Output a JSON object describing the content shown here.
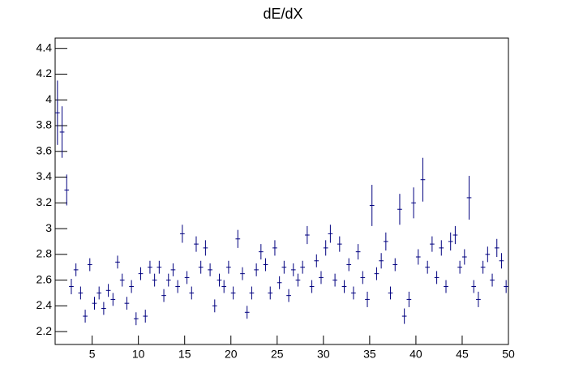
{
  "chart_data": {
    "type": "errorbar",
    "title": "dE/dX",
    "color": "#00007f",
    "xlim": [
      1,
      50
    ],
    "ylim": [
      2.1,
      4.48
    ],
    "xticks": [
      5,
      10,
      15,
      20,
      25,
      30,
      35,
      40,
      45,
      50
    ],
    "yticks": [
      2.2,
      2.4,
      2.6,
      2.8,
      3,
      3.2,
      3.4,
      3.6,
      3.8,
      4,
      4.2,
      4.4
    ],
    "xerr": 0.25,
    "x": [
      1.25,
      1.75,
      2.25,
      2.75,
      3.25,
      3.75,
      4.25,
      4.75,
      5.25,
      5.75,
      6.25,
      6.75,
      7.25,
      7.75,
      8.25,
      8.75,
      9.25,
      9.75,
      10.25,
      10.75,
      11.25,
      11.75,
      12.25,
      12.75,
      13.25,
      13.75,
      14.25,
      14.75,
      15.25,
      15.75,
      16.25,
      16.75,
      17.25,
      17.75,
      18.25,
      18.75,
      19.25,
      19.75,
      20.25,
      20.75,
      21.25,
      21.75,
      22.25,
      22.75,
      23.25,
      23.75,
      24.25,
      24.75,
      25.25,
      25.75,
      26.25,
      26.75,
      27.25,
      27.75,
      28.25,
      28.75,
      29.25,
      29.75,
      30.25,
      30.75,
      31.25,
      31.75,
      32.25,
      32.75,
      33.25,
      33.75,
      34.25,
      34.75,
      35.25,
      35.75,
      36.25,
      36.75,
      37.25,
      37.75,
      38.25,
      38.75,
      39.25,
      39.75,
      40.25,
      40.75,
      41.25,
      41.75,
      42.25,
      42.75,
      43.25,
      43.75,
      44.25,
      44.75,
      45.25,
      45.75,
      46.25,
      46.75,
      47.25,
      47.75,
      48.25,
      48.75,
      49.25,
      49.75
    ],
    "y": [
      3.9,
      3.75,
      3.3,
      2.55,
      2.68,
      2.5,
      2.32,
      2.72,
      2.42,
      2.5,
      2.38,
      2.52,
      2.45,
      2.74,
      2.6,
      2.42,
      2.55,
      2.3,
      2.65,
      2.32,
      2.7,
      2.6,
      2.7,
      2.48,
      2.6,
      2.68,
      2.55,
      2.96,
      2.62,
      2.5,
      2.88,
      2.7,
      2.85,
      2.68,
      2.4,
      2.6,
      2.55,
      2.7,
      2.5,
      2.92,
      2.65,
      2.35,
      2.5,
      2.68,
      2.82,
      2.72,
      2.5,
      2.85,
      2.58,
      2.7,
      2.48,
      2.68,
      2.6,
      2.7,
      2.95,
      2.55,
      2.75,
      2.62,
      2.85,
      2.96,
      2.6,
      2.88,
      2.55,
      2.72,
      2.5,
      2.82,
      2.62,
      2.45,
      3.18,
      2.65,
      2.75,
      2.9,
      2.5,
      2.72,
      3.15,
      2.32,
      2.45,
      3.2,
      2.78,
      3.38,
      2.7,
      2.88,
      2.62,
      2.85,
      2.55,
      2.9,
      2.95,
      2.7,
      2.78,
      3.24,
      2.55,
      2.45,
      2.7,
      2.8,
      2.6,
      2.85,
      2.75,
      2.55
    ],
    "yerr": [
      0.25,
      0.2,
      0.12,
      0.06,
      0.05,
      0.05,
      0.05,
      0.05,
      0.05,
      0.05,
      0.05,
      0.05,
      0.05,
      0.05,
      0.05,
      0.05,
      0.05,
      0.05,
      0.05,
      0.05,
      0.05,
      0.05,
      0.05,
      0.05,
      0.05,
      0.05,
      0.05,
      0.07,
      0.05,
      0.05,
      0.06,
      0.05,
      0.06,
      0.05,
      0.05,
      0.05,
      0.05,
      0.05,
      0.05,
      0.07,
      0.05,
      0.05,
      0.05,
      0.05,
      0.06,
      0.05,
      0.05,
      0.06,
      0.05,
      0.05,
      0.05,
      0.05,
      0.05,
      0.05,
      0.07,
      0.05,
      0.05,
      0.05,
      0.06,
      0.07,
      0.05,
      0.06,
      0.05,
      0.05,
      0.05,
      0.06,
      0.05,
      0.06,
      0.16,
      0.05,
      0.06,
      0.07,
      0.05,
      0.05,
      0.12,
      0.06,
      0.06,
      0.12,
      0.06,
      0.17,
      0.05,
      0.06,
      0.05,
      0.06,
      0.05,
      0.07,
      0.07,
      0.05,
      0.06,
      0.17,
      0.05,
      0.06,
      0.05,
      0.06,
      0.05,
      0.07,
      0.06,
      0.05
    ]
  }
}
